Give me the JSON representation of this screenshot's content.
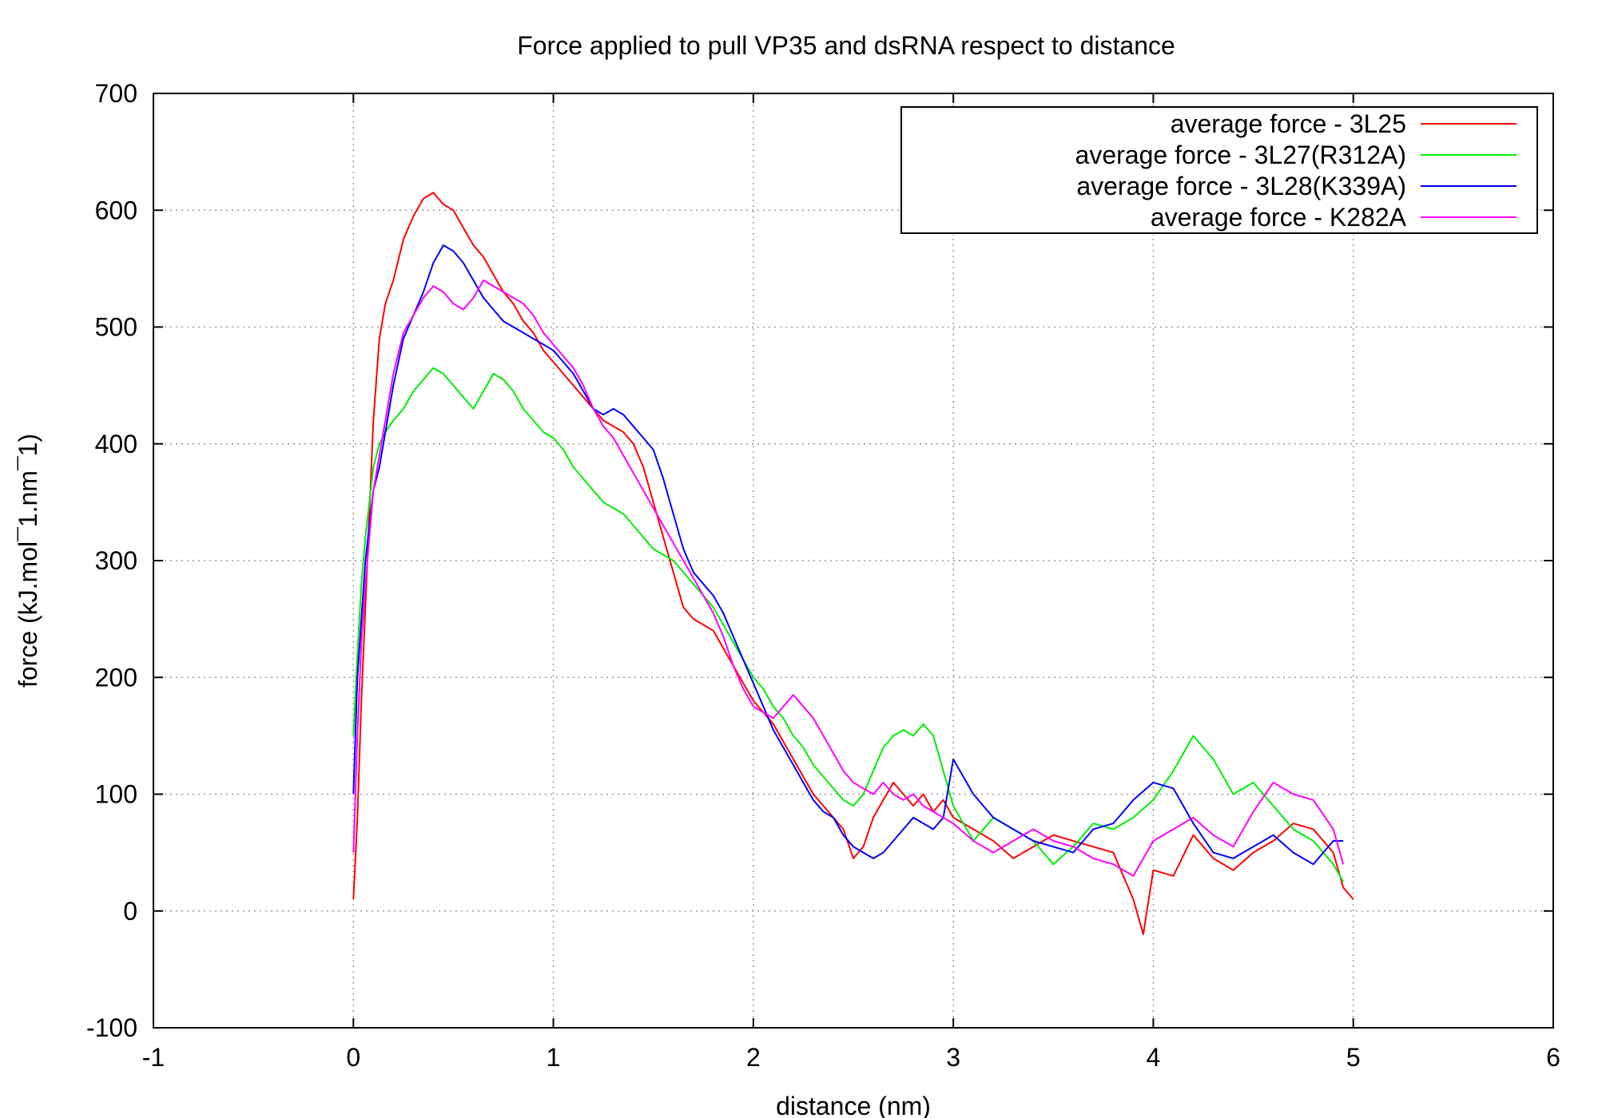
{
  "chart_data": {
    "type": "line",
    "title": "Force applied to pull VP35 and dsRNA respect to distance",
    "xlabel": "distance (nm)",
    "ylabel": "force (kJ.mol¯1.nm¯1)",
    "xlim": [
      -1,
      6
    ],
    "ylim": [
      -100,
      700
    ],
    "xticks": [
      -1,
      0,
      1,
      2,
      3,
      4,
      5,
      6
    ],
    "yticks": [
      -100,
      0,
      100,
      200,
      300,
      400,
      500,
      600,
      700
    ],
    "grid": true,
    "legend_position": "top-right",
    "series": [
      {
        "name": "average force - 3L25",
        "color": "#ff0000",
        "x": [
          0.0,
          0.02,
          0.04,
          0.06,
          0.08,
          0.1,
          0.13,
          0.16,
          0.2,
          0.25,
          0.3,
          0.35,
          0.4,
          0.45,
          0.5,
          0.55,
          0.6,
          0.65,
          0.7,
          0.75,
          0.8,
          0.85,
          0.9,
          0.95,
          1.0,
          1.05,
          1.1,
          1.15,
          1.2,
          1.25,
          1.3,
          1.35,
          1.4,
          1.45,
          1.5,
          1.55,
          1.6,
          1.65,
          1.7,
          1.75,
          1.8,
          1.85,
          1.9,
          1.95,
          2.0,
          2.05,
          2.1,
          2.15,
          2.2,
          2.25,
          2.3,
          2.35,
          2.4,
          2.45,
          2.5,
          2.55,
          2.6,
          2.65,
          2.7,
          2.75,
          2.8,
          2.85,
          2.9,
          2.95,
          3.0,
          3.1,
          3.2,
          3.3,
          3.4,
          3.5,
          3.6,
          3.7,
          3.8,
          3.85,
          3.9,
          3.95,
          4.0,
          4.1,
          4.2,
          4.3,
          4.4,
          4.5,
          4.6,
          4.7,
          4.8,
          4.9,
          4.95,
          5.0
        ],
        "y": [
          10,
          80,
          180,
          260,
          340,
          420,
          490,
          520,
          540,
          575,
          595,
          610,
          615,
          605,
          600,
          585,
          570,
          560,
          545,
          530,
          520,
          505,
          495,
          480,
          470,
          460,
          450,
          440,
          430,
          420,
          415,
          410,
          400,
          380,
          350,
          320,
          290,
          260,
          250,
          245,
          240,
          225,
          210,
          195,
          180,
          170,
          160,
          145,
          130,
          115,
          100,
          90,
          80,
          70,
          45,
          55,
          80,
          95,
          110,
          100,
          90,
          100,
          85,
          95,
          80,
          70,
          60,
          45,
          55,
          65,
          60,
          55,
          50,
          30,
          10,
          -20,
          35,
          30,
          65,
          45,
          35,
          50,
          60,
          75,
          70,
          50,
          20,
          10
        ]
      },
      {
        "name": "average force - 3L27(R312A)",
        "color": "#00ee00",
        "x": [
          0.0,
          0.02,
          0.04,
          0.06,
          0.08,
          0.1,
          0.13,
          0.16,
          0.2,
          0.25,
          0.3,
          0.35,
          0.4,
          0.45,
          0.5,
          0.55,
          0.6,
          0.65,
          0.7,
          0.75,
          0.8,
          0.85,
          0.9,
          0.95,
          1.0,
          1.05,
          1.1,
          1.15,
          1.2,
          1.25,
          1.3,
          1.35,
          1.4,
          1.45,
          1.5,
          1.55,
          1.6,
          1.65,
          1.7,
          1.75,
          1.8,
          1.85,
          1.9,
          1.95,
          2.0,
          2.05,
          2.1,
          2.15,
          2.2,
          2.25,
          2.3,
          2.35,
          2.4,
          2.45,
          2.5,
          2.55,
          2.6,
          2.65,
          2.7,
          2.75,
          2.8,
          2.85,
          2.9,
          2.95,
          3.0,
          3.1,
          3.2,
          3.3,
          3.4,
          3.5,
          3.6,
          3.7,
          3.8,
          3.9,
          4.0,
          4.1,
          4.2,
          4.3,
          4.4,
          4.5,
          4.6,
          4.7,
          4.8,
          4.9,
          4.95
        ],
        "y": [
          150,
          220,
          280,
          320,
          350,
          380,
          400,
          410,
          420,
          430,
          445,
          455,
          465,
          460,
          450,
          440,
          430,
          445,
          460,
          455,
          445,
          430,
          420,
          410,
          405,
          395,
          380,
          370,
          360,
          350,
          345,
          340,
          330,
          320,
          310,
          305,
          300,
          290,
          280,
          270,
          260,
          245,
          230,
          215,
          200,
          190,
          175,
          165,
          150,
          140,
          125,
          115,
          105,
          95,
          90,
          100,
          120,
          140,
          150,
          155,
          150,
          160,
          150,
          120,
          90,
          60,
          80,
          70,
          60,
          40,
          55,
          75,
          70,
          80,
          95,
          120,
          150,
          130,
          100,
          110,
          90,
          70,
          60,
          40,
          25
        ]
      },
      {
        "name": "average force - 3L28(K339A)",
        "color": "#0000ff",
        "x": [
          0.0,
          0.02,
          0.04,
          0.06,
          0.08,
          0.1,
          0.13,
          0.16,
          0.2,
          0.25,
          0.3,
          0.35,
          0.4,
          0.45,
          0.5,
          0.55,
          0.6,
          0.65,
          0.7,
          0.75,
          0.8,
          0.85,
          0.9,
          0.95,
          1.0,
          1.05,
          1.1,
          1.15,
          1.2,
          1.25,
          1.3,
          1.35,
          1.4,
          1.45,
          1.5,
          1.55,
          1.6,
          1.65,
          1.7,
          1.75,
          1.8,
          1.85,
          1.9,
          1.95,
          2.0,
          2.05,
          2.1,
          2.15,
          2.2,
          2.25,
          2.3,
          2.35,
          2.4,
          2.45,
          2.5,
          2.55,
          2.6,
          2.65,
          2.7,
          2.75,
          2.8,
          2.85,
          2.9,
          2.95,
          3.0,
          3.1,
          3.2,
          3.3,
          3.4,
          3.5,
          3.6,
          3.7,
          3.8,
          3.9,
          4.0,
          4.1,
          4.2,
          4.3,
          4.4,
          4.5,
          4.6,
          4.7,
          4.8,
          4.9,
          4.95
        ],
        "y": [
          100,
          200,
          250,
          300,
          330,
          360,
          380,
          410,
          450,
          490,
          510,
          530,
          555,
          570,
          565,
          555,
          540,
          525,
          515,
          505,
          500,
          495,
          490,
          485,
          480,
          470,
          460,
          445,
          430,
          425,
          430,
          425,
          415,
          405,
          395,
          370,
          340,
          310,
          290,
          280,
          270,
          255,
          235,
          215,
          195,
          175,
          155,
          140,
          125,
          110,
          95,
          85,
          80,
          65,
          55,
          50,
          45,
          50,
          60,
          70,
          80,
          75,
          70,
          80,
          130,
          100,
          80,
          70,
          60,
          55,
          50,
          70,
          75,
          95,
          110,
          105,
          75,
          50,
          45,
          55,
          65,
          50,
          40,
          60,
          60
        ]
      },
      {
        "name": "average force - K282A",
        "color": "#ff00ff",
        "x": [
          0.0,
          0.02,
          0.04,
          0.06,
          0.08,
          0.1,
          0.13,
          0.16,
          0.2,
          0.25,
          0.3,
          0.35,
          0.4,
          0.45,
          0.5,
          0.55,
          0.6,
          0.65,
          0.7,
          0.75,
          0.8,
          0.85,
          0.9,
          0.95,
          1.0,
          1.05,
          1.1,
          1.15,
          1.2,
          1.25,
          1.3,
          1.35,
          1.4,
          1.45,
          1.5,
          1.55,
          1.6,
          1.65,
          1.7,
          1.75,
          1.8,
          1.85,
          1.9,
          1.95,
          2.0,
          2.05,
          2.1,
          2.15,
          2.2,
          2.25,
          2.3,
          2.35,
          2.4,
          2.45,
          2.5,
          2.55,
          2.6,
          2.65,
          2.7,
          2.75,
          2.8,
          2.85,
          2.9,
          2.95,
          3.0,
          3.1,
          3.2,
          3.3,
          3.4,
          3.5,
          3.6,
          3.7,
          3.8,
          3.9,
          4.0,
          4.1,
          4.2,
          4.3,
          4.4,
          4.5,
          4.6,
          4.7,
          4.8,
          4.9,
          4.95
        ],
        "y": [
          50,
          150,
          230,
          280,
          320,
          360,
          390,
          420,
          460,
          495,
          510,
          525,
          535,
          530,
          520,
          515,
          525,
          540,
          535,
          530,
          525,
          520,
          510,
          495,
          485,
          475,
          465,
          450,
          430,
          415,
          405,
          390,
          375,
          360,
          345,
          330,
          315,
          300,
          285,
          270,
          255,
          235,
          210,
          190,
          175,
          170,
          165,
          175,
          185,
          175,
          165,
          150,
          135,
          120,
          110,
          105,
          100,
          110,
          100,
          95,
          100,
          90,
          85,
          80,
          75,
          60,
          50,
          60,
          70,
          60,
          55,
          45,
          40,
          30,
          60,
          70,
          80,
          65,
          55,
          85,
          110,
          100,
          95,
          70,
          40
        ]
      }
    ]
  }
}
